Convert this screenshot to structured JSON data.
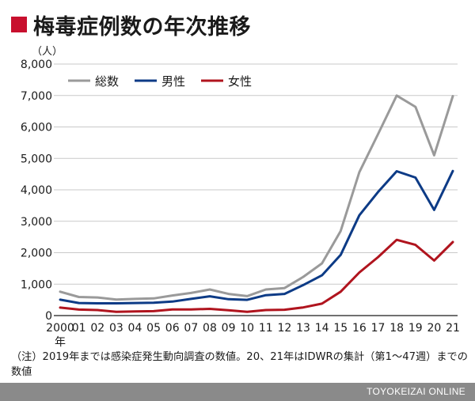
{
  "title": "梅毒症例数の年次推移",
  "chart_data": {
    "type": "line",
    "title": "梅毒症例数の年次推移",
    "unit_label": "（人）",
    "year_suffix": "年",
    "categories": [
      "2000",
      "01",
      "02",
      "03",
      "04",
      "05",
      "06",
      "07",
      "08",
      "09",
      "10",
      "11",
      "12",
      "13",
      "14",
      "15",
      "16",
      "17",
      "18",
      "19",
      "20",
      "21"
    ],
    "ylim": [
      0,
      8000
    ],
    "yticks": [
      0,
      1000,
      2000,
      3000,
      4000,
      5000,
      6000,
      7000,
      8000
    ],
    "ytick_labels": [
      "0",
      "1,000",
      "2,000",
      "3,000",
      "4,000",
      "5,000",
      "6,000",
      "7,000",
      "8,000"
    ],
    "grid": true,
    "legend_position": "top-left",
    "series": [
      {
        "name": "総数",
        "color": "#9a9a9a",
        "values": [
          760,
          590,
          575,
          510,
          530,
          545,
          640,
          720,
          830,
          690,
          620,
          830,
          875,
          1230,
          1660,
          2690,
          4560,
          5770,
          7000,
          6640,
          5100,
          6980
        ]
      },
      {
        "name": "男性",
        "color": "#0d3b86",
        "values": [
          505,
          400,
          390,
          390,
          400,
          410,
          445,
          530,
          615,
          520,
          500,
          650,
          690,
          970,
          1280,
          1930,
          3190,
          3930,
          4590,
          4390,
          3360,
          4600
        ]
      },
      {
        "name": "女性",
        "color": "#b0141e",
        "values": [
          255,
          190,
          175,
          120,
          130,
          140,
          195,
          195,
          215,
          170,
          120,
          175,
          185,
          260,
          380,
          760,
          1370,
          1860,
          2410,
          2250,
          1750,
          2340
        ]
      }
    ]
  },
  "note": "（注）2019年までは感染症発生動向調査の数値。20、21年はIDWRの集計（第1〜47週）までの数値",
  "footer": "TOYOKEIZAI ONLINE"
}
